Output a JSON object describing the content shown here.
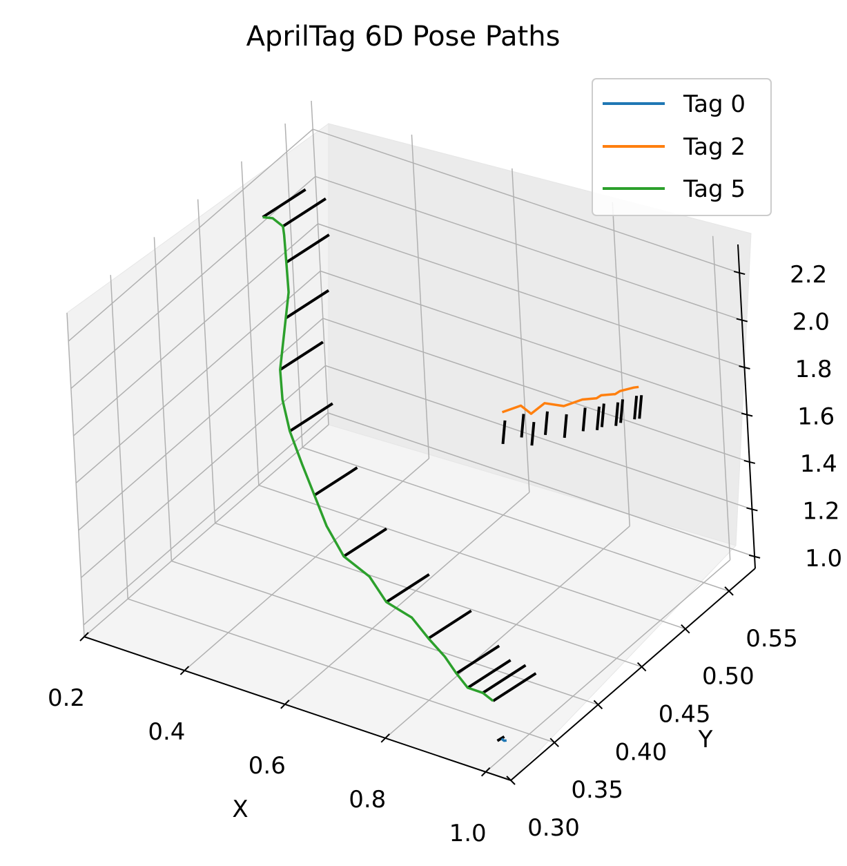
{
  "chart_data": {
    "type": "line",
    "projection": "3d",
    "title": "AprilTag 6D Pose Paths",
    "xlabel": "X",
    "ylabel": "Y",
    "zlabel": "",
    "xlim": [
      0.2,
      1.05
    ],
    "ylim": [
      0.3,
      0.58
    ],
    "zlim": [
      0.95,
      2.32
    ],
    "x_ticks": [
      "0.2",
      "0.4",
      "0.6",
      "0.8",
      "1.0"
    ],
    "y_ticks": [
      "0.30",
      "0.35",
      "0.40",
      "0.45",
      "0.50",
      "0.55"
    ],
    "z_ticks": [
      "1.0",
      "1.2",
      "1.4",
      "1.6",
      "1.8",
      "2.0",
      "2.2"
    ],
    "grid": true,
    "legend_position": "top-right",
    "orientation_marker_color": "#000000",
    "series": [
      {
        "name": "Tag 0",
        "color": "#1f77b4",
        "points": [
          [
            0.98,
            0.33,
            0.98
          ],
          [
            0.985,
            0.33,
            0.975
          ],
          [
            0.99,
            0.33,
            0.98
          ]
        ]
      },
      {
        "name": "Tag 2",
        "color": "#ff7f0e",
        "points": [
          [
            0.85,
            0.42,
            1.98
          ],
          [
            0.87,
            0.43,
            1.99
          ],
          [
            0.89,
            0.43,
            1.97
          ],
          [
            0.9,
            0.44,
            1.99
          ],
          [
            0.92,
            0.45,
            1.96
          ],
          [
            0.94,
            0.46,
            1.97
          ],
          [
            0.95,
            0.47,
            1.95
          ],
          [
            0.96,
            0.47,
            1.97
          ],
          [
            0.97,
            0.48,
            1.95
          ],
          [
            0.98,
            0.48,
            1.97
          ],
          [
            0.99,
            0.49,
            1.96
          ],
          [
            1.0,
            0.49,
            1.97
          ]
        ]
      },
      {
        "name": "Tag 5",
        "color": "#2ca02c",
        "points": [
          [
            0.2,
            0.52,
            2.02
          ],
          [
            0.22,
            0.52,
            2.03
          ],
          [
            0.24,
            0.52,
            2.01
          ],
          [
            0.26,
            0.51,
            2.02
          ],
          [
            0.28,
            0.5,
            1.95
          ],
          [
            0.3,
            0.49,
            1.87
          ],
          [
            0.31,
            0.48,
            1.8
          ],
          [
            0.32,
            0.47,
            1.73
          ],
          [
            0.33,
            0.46,
            1.66
          ],
          [
            0.35,
            0.45,
            1.58
          ],
          [
            0.38,
            0.44,
            1.5
          ],
          [
            0.42,
            0.43,
            1.42
          ],
          [
            0.46,
            0.42,
            1.35
          ],
          [
            0.5,
            0.41,
            1.28
          ],
          [
            0.55,
            0.4,
            1.22
          ],
          [
            0.6,
            0.4,
            1.17
          ],
          [
            0.65,
            0.39,
            1.13
          ],
          [
            0.7,
            0.39,
            1.1
          ],
          [
            0.75,
            0.38,
            1.08
          ],
          [
            0.8,
            0.37,
            1.07
          ],
          [
            0.84,
            0.36,
            1.06
          ],
          [
            0.88,
            0.35,
            1.06
          ],
          [
            0.91,
            0.35,
            1.06
          ],
          [
            0.93,
            0.35,
            1.04
          ]
        ]
      }
    ]
  }
}
